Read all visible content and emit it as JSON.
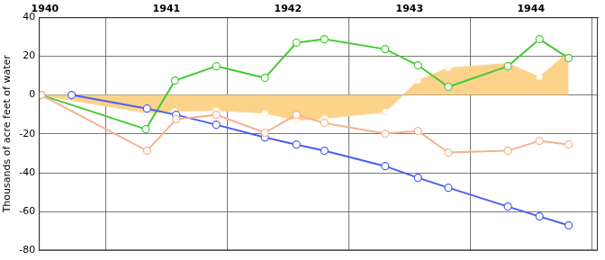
{
  "chart_data": {
    "type": "line",
    "y_label": "Thousands of acre feet of water",
    "xlim": [
      1940.4,
      1945
    ],
    "xticks": [
      {
        "value": 1940.45,
        "label": "1940"
      },
      {
        "value": 1941.45,
        "label": "1941"
      },
      {
        "value": 1942.45,
        "label": "1942"
      },
      {
        "value": 1943.45,
        "label": "1943"
      },
      {
        "value": 1944.45,
        "label": "1944"
      }
    ],
    "ylim": [
      -80,
      40
    ],
    "yticks": [
      -80,
      -60,
      -40,
      -20,
      0,
      20,
      40
    ],
    "grid": true,
    "series": [
      {
        "type": "area",
        "color": "#fdd38c",
        "marker": "circle",
        "x": [
          1940.42,
          1941.29,
          1941.52,
          1941.86,
          1942.26,
          1942.52,
          1942.75,
          1943.25,
          1943.52,
          1943.77,
          1944.26,
          1944.52,
          1944.76
        ],
        "values": [
          0,
          -9.3,
          -8.3,
          -7.9,
          -9.3,
          -13,
          -12,
          -8.8,
          7.4,
          13.9,
          16.2,
          9.3,
          22.2
        ]
      },
      {
        "type": "line",
        "color": "#f7b08f",
        "marker": "circle",
        "x": [
          1940.42,
          1941.29,
          1941.53,
          1941.86,
          1942.26,
          1942.52,
          1942.75,
          1943.25,
          1943.52,
          1943.77,
          1944.26,
          1944.52,
          1944.76
        ],
        "values": [
          0,
          -28.7,
          -12.5,
          -10.2,
          -19.4,
          -10.2,
          -14.4,
          -19.9,
          -18.5,
          -29.6,
          -28.7,
          -23.6,
          -25.5
        ]
      },
      {
        "type": "line",
        "color": "#4a5ef0",
        "marker": "circle",
        "x": [
          1940.67,
          1941.29,
          1941.53,
          1941.86,
          1942.26,
          1942.52,
          1942.75,
          1943.25,
          1943.52,
          1943.77,
          1944.26,
          1944.52,
          1944.76
        ],
        "values": [
          0,
          -7,
          -10.2,
          -15.3,
          -21.8,
          -25.5,
          -28.7,
          -36.6,
          -42.6,
          -47.7,
          -57.4,
          -62.5,
          -67.1
        ]
      },
      {
        "type": "line",
        "color": "#44cc33",
        "marker": "circle",
        "x": [
          1940.42,
          1941.28,
          1941.52,
          1941.86,
          1942.26,
          1942.52,
          1942.75,
          1943.25,
          1943.52,
          1943.77,
          1944.26,
          1944.52,
          1944.76
        ],
        "values": [
          0,
          -17.6,
          7.4,
          14.8,
          8.8,
          26.9,
          28.7,
          23.6,
          15.3,
          4.2,
          14.8,
          28.7,
          19.0
        ]
      }
    ]
  }
}
